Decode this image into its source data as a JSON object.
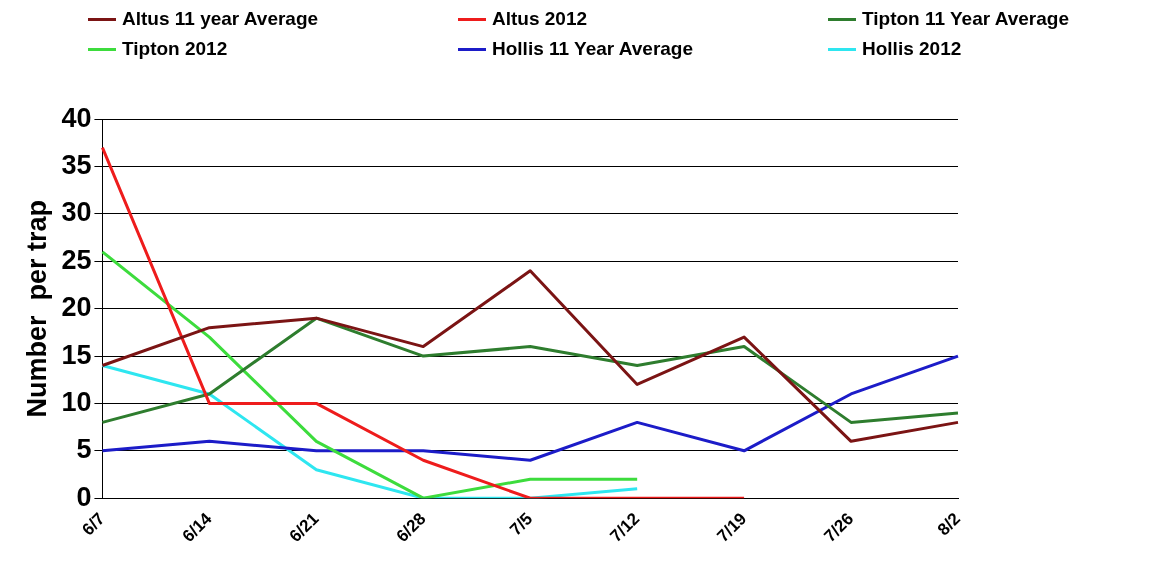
{
  "chart_data": {
    "type": "line",
    "ylabel": "Number  per trap",
    "categories": [
      "6/7",
      "6/14",
      "6/21",
      "6/28",
      "7/5",
      "7/12",
      "7/19",
      "7/26",
      "8/2"
    ],
    "series": [
      {
        "name": "Altus 11 year Average",
        "color": "#7b1414",
        "values": [
          14,
          18,
          19,
          16,
          24,
          12,
          17,
          6,
          8
        ]
      },
      {
        "name": "Altus 2012",
        "color": "#ee1c1c",
        "values": [
          37,
          10,
          10,
          4,
          0,
          0,
          0,
          null,
          null
        ]
      },
      {
        "name": "Tipton 11 Year Average",
        "color": "#2e7d2e",
        "values": [
          8,
          11,
          19,
          15,
          16,
          14,
          16,
          8,
          9
        ]
      },
      {
        "name": "Tipton 2012",
        "color": "#3ddc3d",
        "values": [
          26,
          17,
          6,
          0,
          2,
          2,
          null,
          null,
          null
        ]
      },
      {
        "name": "Hollis 11 Year Average",
        "color": "#1c1cc8",
        "values": [
          5,
          6,
          5,
          5,
          4,
          8,
          5,
          11,
          15
        ]
      },
      {
        "name": "Hollis 2012",
        "color": "#2ee6f0",
        "values": [
          14,
          11,
          3,
          0,
          0,
          1,
          null,
          null,
          null
        ]
      }
    ],
    "ylim": [
      0,
      40
    ],
    "yticks": [
      0,
      5,
      10,
      15,
      20,
      25,
      30,
      35,
      40
    ],
    "grid": "y",
    "legend": "top",
    "marker": "none",
    "line_style": "solid"
  }
}
